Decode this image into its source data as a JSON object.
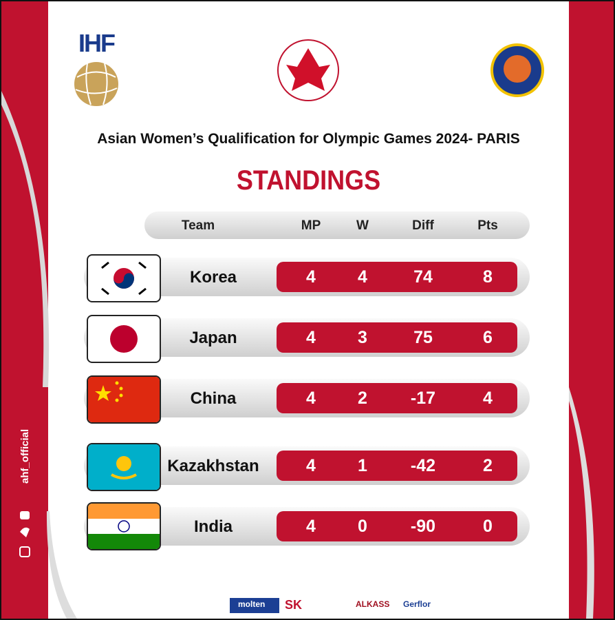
{
  "logos": {
    "ihf": "IHF"
  },
  "header": {
    "title": "Asian Women’s Qualification for Olympic Games 2024- PARIS",
    "heading": "STANDINGS"
  },
  "table": {
    "columns": [
      "Team",
      "MP",
      "W",
      "Diff",
      "Pts"
    ],
    "rows": [
      [
        "Korea",
        4,
        4,
        74,
        8
      ],
      [
        "Japan",
        4,
        3,
        75,
        6
      ],
      [
        "China",
        4,
        2,
        -17,
        4
      ],
      [
        "Kazakhstan",
        4,
        1,
        -42,
        2
      ],
      [
        "India",
        4,
        0,
        -90,
        0
      ]
    ]
  },
  "social": {
    "handle": "ahf_official"
  },
  "sponsors": [
    "molten",
    "SK",
    "ALKASS",
    "Gerflor"
  ]
}
